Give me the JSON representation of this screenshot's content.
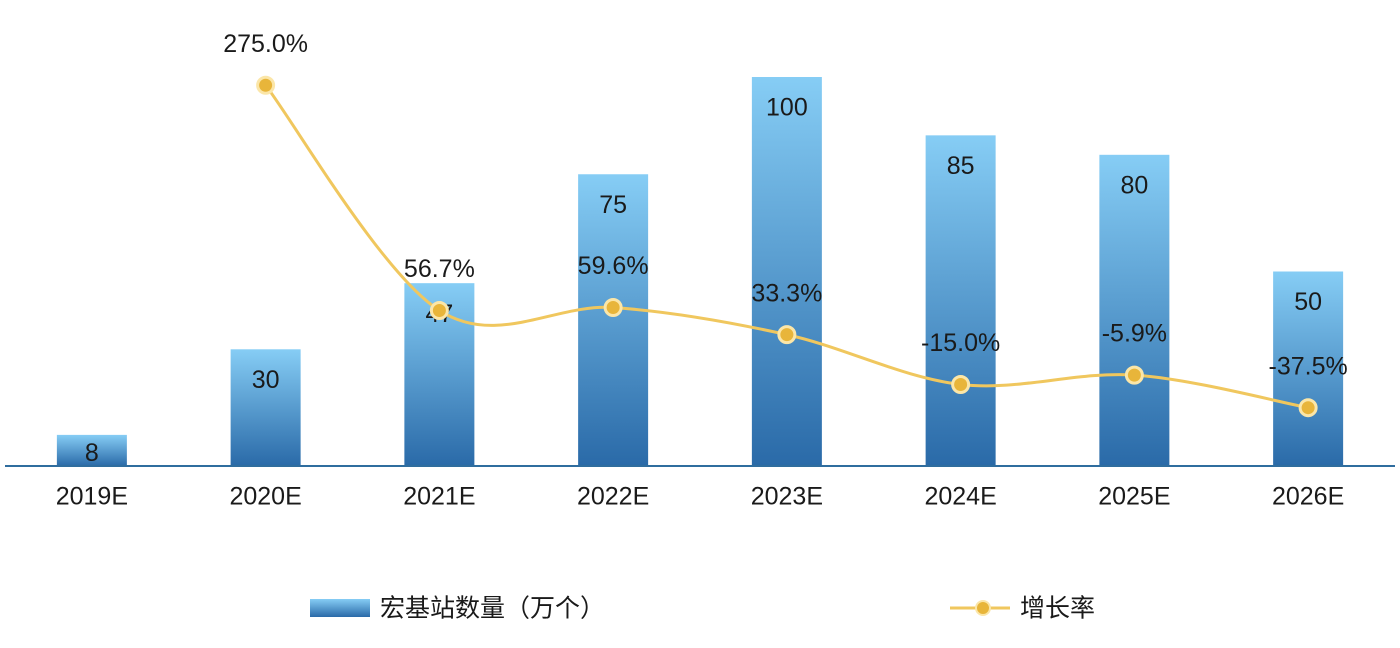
{
  "chart_data": {
    "type": "bar_line",
    "categories": [
      "2019E",
      "2020E",
      "2021E",
      "2022E",
      "2023E",
      "2024E",
      "2025E",
      "2026E"
    ],
    "series": [
      {
        "name": "宏基站数量（万个）",
        "type": "bar",
        "color": "#3a8fd0",
        "values": [
          8,
          30,
          47,
          75,
          100,
          85,
          80,
          50
        ]
      },
      {
        "name": "增长率",
        "type": "line",
        "axis": "y2",
        "color": "#f0c75e",
        "values": [
          null,
          275.0,
          56.7,
          59.6,
          33.3,
          -15.0,
          -5.9,
          -37.5
        ],
        "value_labels": [
          null,
          "275.0%",
          "56.7%",
          "59.6%",
          "33.3%",
          "-15.0%",
          "-5.9%",
          "-37.5%"
        ]
      }
    ],
    "ylim": [
      0,
      100
    ],
    "y2lim": [
      -94,
      283
    ],
    "legend": "bottom"
  }
}
